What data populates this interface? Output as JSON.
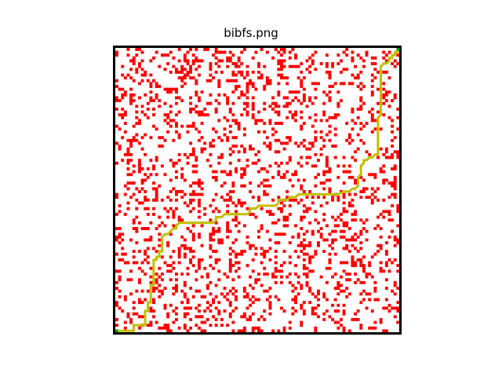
{
  "title": "bibfs.png",
  "grid": {
    "rows": 100,
    "cols": 100,
    "obstacle_density": 0.2,
    "seed": 7
  },
  "colors": {
    "background": "#ffffff",
    "obstacle": "#ff0000",
    "path": "#bfbf00",
    "frame": "#000000",
    "start_end": "#00a000"
  },
  "path_cells": [
    [
      0,
      0
    ],
    [
      1,
      0
    ],
    [
      2,
      0
    ],
    [
      3,
      0
    ],
    [
      4,
      0
    ],
    [
      6,
      0
    ],
    [
      6,
      1
    ],
    [
      6,
      2
    ],
    [
      7,
      2
    ],
    [
      8,
      2
    ],
    [
      10,
      2
    ],
    [
      10,
      3
    ],
    [
      10,
      4
    ],
    [
      10,
      5
    ],
    [
      10,
      6
    ],
    [
      10,
      7
    ],
    [
      11,
      7
    ],
    [
      11,
      8
    ],
    [
      11,
      9
    ],
    [
      11,
      10
    ],
    [
      12,
      10
    ],
    [
      12,
      11
    ],
    [
      12,
      12
    ],
    [
      12,
      13
    ],
    [
      12,
      14
    ],
    [
      12,
      15
    ],
    [
      12,
      16
    ],
    [
      13,
      16
    ],
    [
      13,
      17
    ],
    [
      13,
      18
    ],
    [
      13,
      19
    ],
    [
      13,
      20
    ],
    [
      13,
      21
    ],
    [
      13,
      22
    ],
    [
      13,
      23
    ],
    [
      13,
      24
    ],
    [
      13,
      25
    ],
    [
      14,
      25
    ],
    [
      14,
      26
    ],
    [
      15,
      26
    ],
    [
      15,
      27
    ],
    [
      15,
      28
    ],
    [
      16,
      28
    ],
    [
      16,
      29
    ],
    [
      16,
      30
    ],
    [
      16,
      31
    ],
    [
      16,
      32
    ],
    [
      16,
      33
    ],
    [
      17,
      34
    ],
    [
      18,
      34
    ],
    [
      19,
      35
    ],
    [
      20,
      36
    ],
    [
      21,
      36
    ],
    [
      21,
      37
    ],
    [
      22,
      38
    ],
    [
      23,
      38
    ],
    [
      25,
      38
    ],
    [
      27,
      38
    ],
    [
      29,
      38
    ],
    [
      31,
      38
    ],
    [
      33,
      38
    ],
    [
      34,
      38
    ],
    [
      35,
      39
    ],
    [
      35,
      40
    ],
    [
      36,
      40
    ],
    [
      37,
      40
    ],
    [
      38,
      41
    ],
    [
      40,
      41
    ],
    [
      42,
      41
    ],
    [
      44,
      41
    ],
    [
      46,
      41
    ],
    [
      47,
      42
    ],
    [
      47,
      43
    ],
    [
      48,
      43
    ],
    [
      49,
      43
    ],
    [
      50,
      44
    ],
    [
      52,
      44
    ],
    [
      54,
      44
    ],
    [
      56,
      44
    ],
    [
      57,
      45
    ],
    [
      57,
      46
    ],
    [
      58,
      46
    ],
    [
      60,
      46
    ],
    [
      61,
      47
    ],
    [
      62,
      47
    ],
    [
      63,
      47
    ],
    [
      64,
      48
    ],
    [
      66,
      48
    ],
    [
      68,
      48
    ],
    [
      70,
      48
    ],
    [
      72,
      48
    ],
    [
      74,
      48
    ],
    [
      76,
      48
    ],
    [
      78,
      48
    ],
    [
      80,
      49
    ],
    [
      82,
      49
    ],
    [
      83,
      50
    ],
    [
      84,
      50
    ],
    [
      85,
      51
    ],
    [
      85,
      52
    ],
    [
      85,
      53
    ],
    [
      85,
      54
    ],
    [
      86,
      55
    ],
    [
      86,
      56
    ],
    [
      86,
      57
    ],
    [
      86,
      58
    ],
    [
      87,
      59
    ],
    [
      87,
      60
    ],
    [
      88,
      60
    ],
    [
      89,
      61
    ],
    [
      90,
      61
    ],
    [
      91,
      62
    ],
    [
      92,
      62
    ],
    [
      92,
      63
    ],
    [
      92,
      64
    ],
    [
      92,
      65
    ],
    [
      92,
      66
    ],
    [
      92,
      67
    ],
    [
      92,
      68
    ],
    [
      92,
      69
    ],
    [
      92,
      70
    ],
    [
      92,
      71
    ],
    [
      92,
      72
    ],
    [
      92,
      73
    ],
    [
      92,
      74
    ],
    [
      92,
      75
    ],
    [
      93,
      76
    ],
    [
      93,
      77
    ],
    [
      93,
      78
    ],
    [
      93,
      79
    ],
    [
      93,
      80
    ],
    [
      93,
      81
    ],
    [
      93,
      82
    ],
    [
      93,
      83
    ],
    [
      93,
      84
    ],
    [
      93,
      85
    ],
    [
      93,
      86
    ],
    [
      93,
      87
    ],
    [
      93,
      88
    ],
    [
      93,
      89
    ],
    [
      93,
      90
    ],
    [
      93,
      91
    ],
    [
      93,
      92
    ],
    [
      93,
      93
    ],
    [
      94,
      94
    ],
    [
      95,
      94
    ],
    [
      96,
      95
    ],
    [
      96,
      96
    ],
    [
      97,
      96
    ],
    [
      97,
      97
    ],
    [
      98,
      97
    ],
    [
      98,
      98
    ],
    [
      99,
      98
    ],
    [
      99,
      99
    ]
  ]
}
